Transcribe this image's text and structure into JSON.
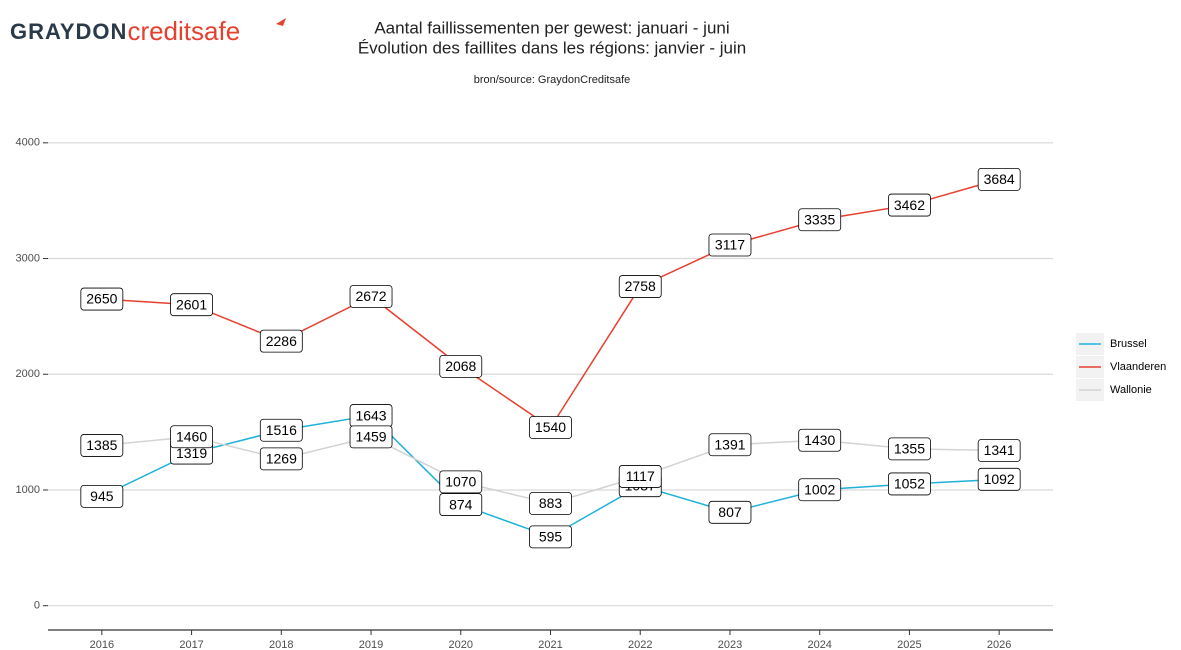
{
  "chart_data": {
    "type": "line",
    "logo": [
      "GRAYDON",
      "creditsafe"
    ],
    "title": "Aantal faillissementen per gewest: januari - juni",
    "title2": "Évolution des faillites dans les régions: janvier - juin",
    "subtitle": "bron/source: GraydonCreditsafe",
    "x": [
      2016,
      2017,
      2018,
      2019,
      2020,
      2021,
      2022,
      2023,
      2024,
      2025,
      2026
    ],
    "series": [
      {
        "name": "Brussel",
        "color": "#1fb1d9",
        "values": [
          945,
          1319,
          1516,
          1643,
          874,
          595,
          1037,
          807,
          1002,
          1052,
          1092
        ]
      },
      {
        "name": "Vlaanderen",
        "color": "#e6402f",
        "values": [
          2650,
          2601,
          2286,
          2672,
          2068,
          1540,
          2758,
          3117,
          3335,
          3462,
          3684
        ]
      },
      {
        "name": "Wallonie",
        "color": "#d3d3d3",
        "values": [
          1385,
          1460,
          1269,
          1459,
          1070,
          883,
          1117,
          1391,
          1430,
          1355,
          1341
        ]
      }
    ],
    "xlim": [
      2015.4,
      2026.6
    ],
    "xticks": [
      2016,
      2017,
      2018,
      2019,
      2020,
      2021,
      2022,
      2023,
      2024,
      2025,
      2026
    ],
    "ylim": [
      -210,
      4370
    ],
    "yticks": [
      0,
      1000,
      2000,
      3000,
      4000
    ],
    "grid": true,
    "legend": "right"
  }
}
